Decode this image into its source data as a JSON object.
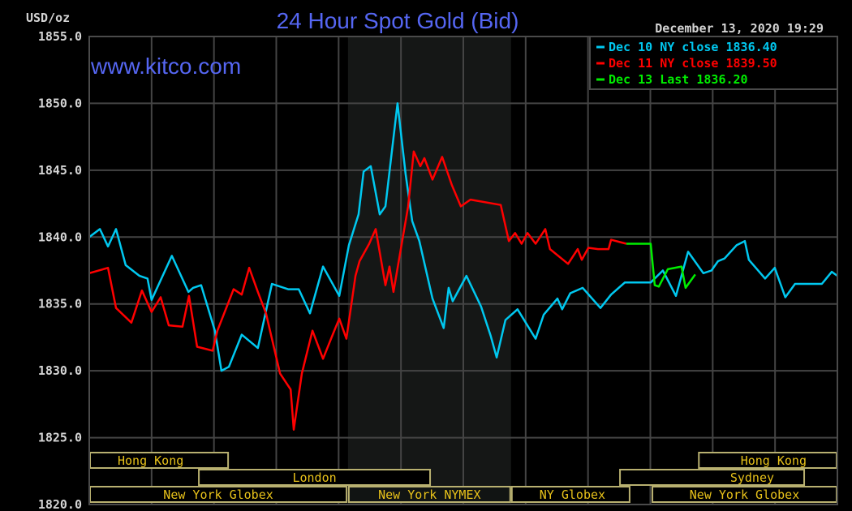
{
  "chart_data": {
    "type": "line",
    "title": "24 Hour Spot Gold (Bid)",
    "watermark": "www.kitco.com",
    "timestamp": "December 13, 2020 19:29",
    "ylabel": "USD/oz",
    "ylim": [
      1820,
      1855
    ],
    "yticks": [
      "1855.0",
      "1850.0",
      "1845.0",
      "1840.0",
      "1835.0",
      "1830.0",
      "1825.0",
      "1820.0"
    ],
    "xlim_hours": [
      0,
      24
    ],
    "grid": true,
    "legend_position": "top-right",
    "background": "#000000",
    "highlight_band_hours": [
      8.3,
      13.53
    ],
    "series": [
      {
        "name": "Dec 10 NY close 1836.40",
        "color": "#00c8f0",
        "points": [
          [
            0,
            1840.0
          ],
          [
            0.34,
            1840.6
          ],
          [
            0.6,
            1839.3
          ],
          [
            0.86,
            1840.6
          ],
          [
            1.17,
            1837.9
          ],
          [
            1.61,
            1837.1
          ],
          [
            1.87,
            1836.9
          ],
          [
            2.0,
            1835.3
          ],
          [
            2.65,
            1838.6
          ],
          [
            3.18,
            1835.9
          ],
          [
            3.33,
            1836.2
          ],
          [
            3.59,
            1836.4
          ],
          [
            4.03,
            1833.0
          ],
          [
            4.24,
            1830.0
          ],
          [
            4.48,
            1830.3
          ],
          [
            4.89,
            1832.7
          ],
          [
            5.41,
            1831.7
          ],
          [
            5.86,
            1836.5
          ],
          [
            6.38,
            1836.1
          ],
          [
            6.72,
            1836.1
          ],
          [
            7.08,
            1834.3
          ],
          [
            7.5,
            1837.8
          ],
          [
            8.02,
            1835.6
          ],
          [
            8.33,
            1839.4
          ],
          [
            8.64,
            1841.7
          ],
          [
            8.8,
            1844.9
          ],
          [
            9.03,
            1845.3
          ],
          [
            9.32,
            1841.7
          ],
          [
            9.5,
            1842.3
          ],
          [
            9.89,
            1850.0
          ],
          [
            10.15,
            1844.7
          ],
          [
            10.36,
            1841.2
          ],
          [
            10.59,
            1839.7
          ],
          [
            11.01,
            1835.4
          ],
          [
            11.37,
            1833.2
          ],
          [
            11.53,
            1836.2
          ],
          [
            11.66,
            1835.2
          ],
          [
            12.1,
            1837.1
          ],
          [
            12.57,
            1834.8
          ],
          [
            12.88,
            1832.6
          ],
          [
            13.07,
            1831.0
          ],
          [
            13.35,
            1833.8
          ],
          [
            13.74,
            1834.6
          ],
          [
            14.32,
            1832.4
          ],
          [
            14.58,
            1834.2
          ],
          [
            15.02,
            1835.4
          ],
          [
            15.17,
            1834.6
          ],
          [
            15.43,
            1835.8
          ],
          [
            15.83,
            1836.2
          ],
          [
            16.4,
            1834.7
          ],
          [
            16.74,
            1835.7
          ],
          [
            17.18,
            1836.6
          ],
          [
            18.01,
            1836.6
          ],
          [
            18.4,
            1837.5
          ],
          [
            18.82,
            1835.6
          ],
          [
            19.21,
            1838.9
          ],
          [
            19.7,
            1837.3
          ],
          [
            19.96,
            1837.5
          ],
          [
            20.17,
            1838.2
          ],
          [
            20.38,
            1838.4
          ],
          [
            20.77,
            1839.4
          ],
          [
            21.03,
            1839.7
          ],
          [
            21.16,
            1838.3
          ],
          [
            21.68,
            1836.9
          ],
          [
            21.99,
            1837.7
          ],
          [
            22.33,
            1835.5
          ],
          [
            22.64,
            1836.5
          ],
          [
            23.09,
            1836.5
          ],
          [
            23.5,
            1836.5
          ],
          [
            23.82,
            1837.4
          ],
          [
            24,
            1837.1
          ]
        ]
      },
      {
        "name": "Dec 11 NY close 1839.50",
        "color": "#ff0000",
        "points": [
          [
            0,
            1837.3
          ],
          [
            0.6,
            1837.7
          ],
          [
            0.86,
            1834.7
          ],
          [
            1.35,
            1833.6
          ],
          [
            1.69,
            1836.0
          ],
          [
            2.0,
            1834.4
          ],
          [
            2.29,
            1835.5
          ],
          [
            2.55,
            1833.4
          ],
          [
            2.99,
            1833.3
          ],
          [
            3.2,
            1835.6
          ],
          [
            3.46,
            1831.8
          ],
          [
            3.96,
            1831.5
          ],
          [
            4.11,
            1833.0
          ],
          [
            4.63,
            1836.1
          ],
          [
            4.89,
            1835.7
          ],
          [
            5.13,
            1837.7
          ],
          [
            5.41,
            1835.9
          ],
          [
            5.67,
            1834.3
          ],
          [
            6.12,
            1829.8
          ],
          [
            6.46,
            1828.6
          ],
          [
            6.56,
            1825.6
          ],
          [
            6.82,
            1829.8
          ],
          [
            7.16,
            1833.0
          ],
          [
            7.5,
            1830.9
          ],
          [
            7.81,
            1832.7
          ],
          [
            8.02,
            1833.9
          ],
          [
            8.25,
            1832.4
          ],
          [
            8.54,
            1837.1
          ],
          [
            8.67,
            1838.2
          ],
          [
            8.98,
            1839.5
          ],
          [
            9.19,
            1840.6
          ],
          [
            9.5,
            1836.4
          ],
          [
            9.63,
            1837.8
          ],
          [
            9.76,
            1835.9
          ],
          [
            10.23,
            1842.3
          ],
          [
            10.41,
            1846.4
          ],
          [
            10.62,
            1845.3
          ],
          [
            10.75,
            1845.9
          ],
          [
            11.01,
            1844.3
          ],
          [
            11.32,
            1846.0
          ],
          [
            11.63,
            1843.9
          ],
          [
            11.92,
            1842.3
          ],
          [
            12.23,
            1842.8
          ],
          [
            13.2,
            1842.4
          ],
          [
            13.46,
            1839.7
          ],
          [
            13.66,
            1840.3
          ],
          [
            13.87,
            1839.5
          ],
          [
            14.06,
            1840.3
          ],
          [
            14.32,
            1839.5
          ],
          [
            14.63,
            1840.6
          ],
          [
            14.78,
            1839.1
          ],
          [
            15.36,
            1838.0
          ],
          [
            15.67,
            1839.1
          ],
          [
            15.8,
            1838.3
          ],
          [
            16.01,
            1839.2
          ],
          [
            16.32,
            1839.1
          ],
          [
            16.66,
            1839.1
          ],
          [
            16.74,
            1839.8
          ],
          [
            17.23,
            1839.5
          ]
        ]
      },
      {
        "name": "Dec 13 Last 1836.20",
        "color": "#00ee00",
        "points": [
          [
            17.23,
            1839.5
          ],
          [
            18.01,
            1839.5
          ],
          [
            18.14,
            1836.4
          ],
          [
            18.27,
            1836.3
          ],
          [
            18.56,
            1837.6
          ],
          [
            19.0,
            1837.8
          ],
          [
            19.13,
            1836.2
          ],
          [
            19.44,
            1837.2
          ]
        ]
      }
    ],
    "sessions": [
      {
        "label": "Hong Kong",
        "row": 1,
        "hours": [
          0,
          4.48
        ],
        "align": "left"
      },
      {
        "label": "Hong Kong",
        "row": 1,
        "hours": [
          19.53,
          24
        ],
        "align": "right"
      },
      {
        "label": "London",
        "row": 2,
        "hours": [
          3.49,
          10.96
        ],
        "align": "center"
      },
      {
        "label": "Sydney",
        "row": 2,
        "hours": [
          17.0,
          22.96
        ],
        "align": "right"
      },
      {
        "label": "New York Globex",
        "row": 3,
        "hours": [
          0,
          8.28
        ],
        "align": "center"
      },
      {
        "label": "New York NYMEX",
        "row": 3,
        "hours": [
          8.3,
          13.53
        ],
        "align": "center"
      },
      {
        "label": "NY Globex",
        "row": 3,
        "hours": [
          13.53,
          17.36
        ],
        "align": "left"
      },
      {
        "label": "New York Globex",
        "row": 3,
        "hours": [
          18.04,
          24
        ],
        "align": "center"
      }
    ],
    "session_color": "#e8c21a"
  }
}
